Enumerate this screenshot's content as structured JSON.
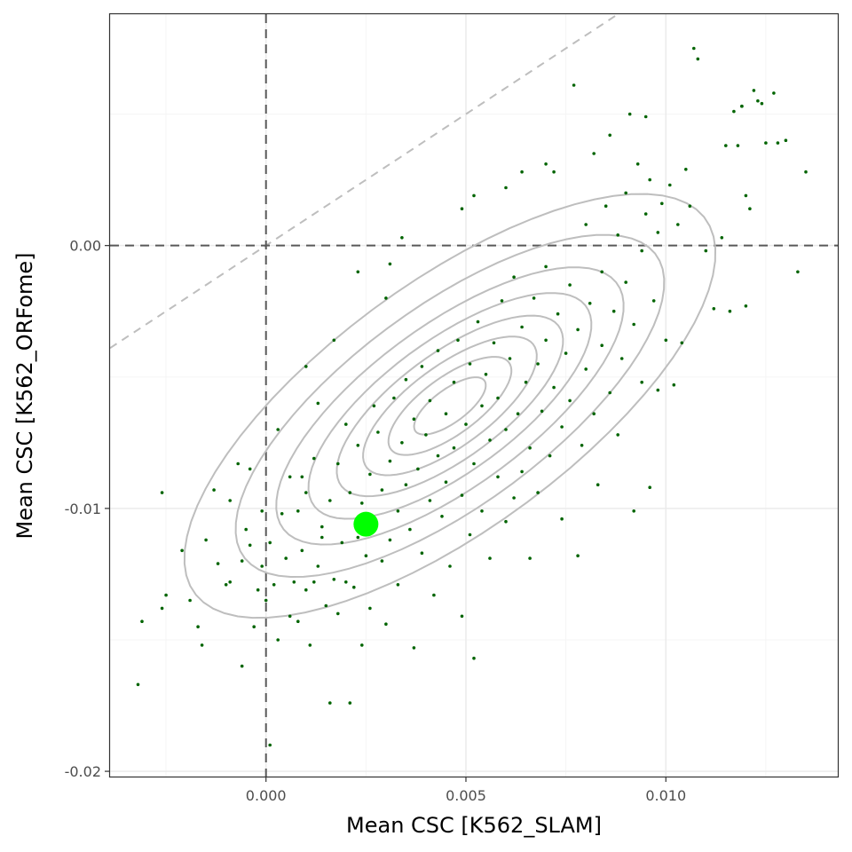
{
  "chart_data": {
    "type": "scatter",
    "xlabel": "Mean CSC [K562_SLAM]",
    "ylabel": "Mean CSC [K562_ORFome]",
    "xlim": [
      -0.0039,
      0.0143
    ],
    "ylim": [
      -0.0202,
      0.0088
    ],
    "x_ticks": [
      0.0,
      0.005,
      0.01
    ],
    "x_tick_labels": [
      "0.000",
      "0.005",
      "0.010"
    ],
    "y_ticks": [
      0.0,
      -0.01,
      -0.02
    ],
    "y_tick_labels": [
      "0.00",
      "-0.01",
      "-0.02"
    ],
    "grid": true,
    "legend": "none",
    "reference_lines": {
      "vertical_dashed_x": 0,
      "horizontal_dashed_y": 0,
      "diagonal_identity": true
    },
    "colors": {
      "points": "#006400",
      "highlight": "#00ff00",
      "contour": "#bebebe",
      "zero_lines": "#595959",
      "identity_line": "#bebebe",
      "grid_major": "#ebebeb",
      "grid_minor": "#f5f5f5",
      "panel_border": "#333333"
    },
    "contour": {
      "center": [
        0.0046,
        -0.0061
      ],
      "sd": [
        0.0028,
        0.0034
      ],
      "correlation": 0.72,
      "levels": [
        0.06,
        0.16,
        0.3,
        0.45,
        0.6,
        0.74,
        0.86,
        0.95
      ]
    },
    "highlight_point": {
      "x": 0.0025,
      "y": -0.0106
    },
    "points": [
      [
        -0.0032,
        -0.0167
      ],
      [
        -0.0031,
        -0.0143
      ],
      [
        -0.0026,
        -0.0094
      ],
      [
        -0.0025,
        -0.0133
      ],
      [
        -0.0026,
        -0.0138
      ],
      [
        -0.0021,
        -0.0116
      ],
      [
        -0.0019,
        -0.0135
      ],
      [
        -0.0017,
        -0.0145
      ],
      [
        -0.0016,
        -0.0152
      ],
      [
        -0.0015,
        -0.0112
      ],
      [
        -0.0013,
        -0.0093
      ],
      [
        -0.0012,
        -0.0121
      ],
      [
        -0.001,
        -0.0129
      ],
      [
        -0.0009,
        -0.0128
      ],
      [
        -0.0009,
        -0.0097
      ],
      [
        -0.0007,
        -0.0083
      ],
      [
        -0.0006,
        -0.012
      ],
      [
        -0.0006,
        -0.016
      ],
      [
        -0.0005,
        -0.0108
      ],
      [
        -0.0004,
        -0.0114
      ],
      [
        -0.0003,
        -0.0145
      ],
      [
        -0.0002,
        -0.0131
      ],
      [
        -0.0001,
        -0.0101
      ],
      [
        -0.0001,
        -0.0122
      ],
      [
        0.0,
        -0.0135
      ],
      [
        0.0001,
        -0.0113
      ],
      [
        0.0001,
        -0.019
      ],
      [
        0.0002,
        -0.0129
      ],
      [
        0.0003,
        -0.015
      ],
      [
        0.0004,
        -0.0102
      ],
      [
        0.0005,
        -0.0119
      ],
      [
        0.0006,
        -0.0088
      ],
      [
        0.0006,
        -0.0141
      ],
      [
        0.0007,
        -0.0128
      ],
      [
        0.0008,
        -0.0101
      ],
      [
        0.0008,
        -0.0143
      ],
      [
        0.0009,
        -0.0116
      ],
      [
        0.001,
        -0.0131
      ],
      [
        0.001,
        -0.0094
      ],
      [
        0.0011,
        -0.0152
      ],
      [
        0.0012,
        -0.0128
      ],
      [
        0.0012,
        -0.0081
      ],
      [
        0.0013,
        -0.0122
      ],
      [
        0.0014,
        -0.0111
      ],
      [
        0.0014,
        -0.0107
      ],
      [
        0.0015,
        -0.0137
      ],
      [
        0.0016,
        -0.0174
      ],
      [
        0.0016,
        -0.0097
      ],
      [
        0.0017,
        -0.0127
      ],
      [
        0.0018,
        -0.014
      ],
      [
        0.0018,
        -0.0083
      ],
      [
        0.0019,
        -0.0113
      ],
      [
        0.002,
        -0.0068
      ],
      [
        0.002,
        -0.0128
      ],
      [
        0.0021,
        -0.0174
      ],
      [
        0.0021,
        -0.0094
      ],
      [
        0.0022,
        -0.013
      ],
      [
        0.0023,
        -0.0111
      ],
      [
        0.0023,
        -0.0076
      ],
      [
        0.0024,
        -0.0152
      ],
      [
        0.0024,
        -0.0098
      ],
      [
        0.0025,
        -0.0118
      ],
      [
        0.0026,
        -0.0087
      ],
      [
        0.0026,
        -0.0138
      ],
      [
        0.0027,
        -0.0061
      ],
      [
        0.0027,
        -0.0104
      ],
      [
        0.0028,
        -0.0071
      ],
      [
        0.0029,
        -0.012
      ],
      [
        0.0029,
        -0.0093
      ],
      [
        0.003,
        -0.0144
      ],
      [
        0.0031,
        -0.0082
      ],
      [
        0.0031,
        -0.0112
      ],
      [
        0.0032,
        -0.0058
      ],
      [
        0.0033,
        -0.0101
      ],
      [
        0.0033,
        -0.0129
      ],
      [
        0.0034,
        -0.0075
      ],
      [
        0.0035,
        -0.0091
      ],
      [
        0.0035,
        -0.0051
      ],
      [
        0.0036,
        -0.0108
      ],
      [
        0.0037,
        -0.0066
      ],
      [
        0.0037,
        -0.0153
      ],
      [
        0.0038,
        -0.0085
      ],
      [
        0.0039,
        -0.0046
      ],
      [
        0.0039,
        -0.0117
      ],
      [
        0.004,
        -0.0072
      ],
      [
        0.0041,
        -0.0097
      ],
      [
        0.0041,
        -0.0059
      ],
      [
        0.0042,
        -0.0133
      ],
      [
        0.0043,
        -0.008
      ],
      [
        0.0043,
        -0.004
      ],
      [
        0.0044,
        -0.0103
      ],
      [
        0.0045,
        -0.0064
      ],
      [
        0.0045,
        -0.009
      ],
      [
        0.0046,
        -0.0122
      ],
      [
        0.0047,
        -0.0052
      ],
      [
        0.0047,
        -0.0077
      ],
      [
        0.0048,
        -0.0036
      ],
      [
        0.0049,
        -0.0095
      ],
      [
        0.0049,
        -0.0141
      ],
      [
        0.005,
        -0.0068
      ],
      [
        0.0051,
        -0.011
      ],
      [
        0.0051,
        -0.0045
      ],
      [
        0.0052,
        -0.0157
      ],
      [
        0.0052,
        -0.0083
      ],
      [
        0.0053,
        -0.0029
      ],
      [
        0.0054,
        -0.0061
      ],
      [
        0.0054,
        -0.0101
      ],
      [
        0.0055,
        -0.0049
      ],
      [
        0.0056,
        -0.0074
      ],
      [
        0.0056,
        -0.0119
      ],
      [
        0.0057,
        -0.0037
      ],
      [
        0.0058,
        -0.0088
      ],
      [
        0.0058,
        -0.0058
      ],
      [
        0.0059,
        -0.0021
      ],
      [
        0.006,
        -0.0105
      ],
      [
        0.006,
        -0.007
      ],
      [
        0.0061,
        -0.0043
      ],
      [
        0.0062,
        -0.0096
      ],
      [
        0.0062,
        -0.0012
      ],
      [
        0.0063,
        -0.0064
      ],
      [
        0.0064,
        -0.0086
      ],
      [
        0.0064,
        -0.0031
      ],
      [
        0.0065,
        -0.0052
      ],
      [
        0.0066,
        -0.0119
      ],
      [
        0.0066,
        -0.0077
      ],
      [
        0.0067,
        -0.002
      ],
      [
        0.0068,
        -0.0045
      ],
      [
        0.0068,
        -0.0094
      ],
      [
        0.0069,
        -0.0063
      ],
      [
        0.007,
        -0.0008
      ],
      [
        0.007,
        -0.0036
      ],
      [
        0.0071,
        -0.008
      ],
      [
        0.0072,
        -0.0054
      ],
      [
        0.0072,
        0.0028
      ],
      [
        0.0073,
        -0.0026
      ],
      [
        0.0074,
        -0.0069
      ],
      [
        0.0074,
        -0.0104
      ],
      [
        0.0075,
        -0.0041
      ],
      [
        0.0076,
        -0.0015
      ],
      [
        0.0076,
        -0.0059
      ],
      [
        0.0077,
        0.0061
      ],
      [
        0.0078,
        -0.0032
      ],
      [
        0.0078,
        -0.0118
      ],
      [
        0.0079,
        -0.0076
      ],
      [
        0.008,
        0.0008
      ],
      [
        0.008,
        -0.0047
      ],
      [
        0.0081,
        -0.0022
      ],
      [
        0.0082,
        -0.0064
      ],
      [
        0.0082,
        0.0035
      ],
      [
        0.0083,
        -0.0091
      ],
      [
        0.0084,
        -0.001
      ],
      [
        0.0084,
        -0.0038
      ],
      [
        0.0085,
        0.0015
      ],
      [
        0.0086,
        -0.0056
      ],
      [
        0.0086,
        0.0042
      ],
      [
        0.0087,
        -0.0025
      ],
      [
        0.0088,
        -0.0072
      ],
      [
        0.0088,
        0.0004
      ],
      [
        0.0089,
        -0.0043
      ],
      [
        0.009,
        0.002
      ],
      [
        0.009,
        -0.0014
      ],
      [
        0.0091,
        0.005
      ],
      [
        0.0092,
        -0.003
      ],
      [
        0.0092,
        -0.0101
      ],
      [
        0.0093,
        0.0031
      ],
      [
        0.0094,
        -0.0002
      ],
      [
        0.0094,
        -0.0052
      ],
      [
        0.0095,
        0.0012
      ],
      [
        0.0096,
        -0.0092
      ],
      [
        0.0096,
        0.0025
      ],
      [
        0.0097,
        -0.0021
      ],
      [
        0.0098,
        -0.0055
      ],
      [
        0.0098,
        0.0005
      ],
      [
        0.0099,
        0.0016
      ],
      [
        0.01,
        -0.0036
      ],
      [
        0.0101,
        0.0023
      ],
      [
        0.0102,
        -0.0053
      ],
      [
        0.0103,
        0.0008
      ],
      [
        0.0104,
        -0.0037
      ],
      [
        0.0105,
        0.0029
      ],
      [
        0.0106,
        0.0015
      ],
      [
        0.0107,
        0.0075
      ],
      [
        0.0108,
        0.0071
      ],
      [
        0.011,
        -0.0002
      ],
      [
        0.0112,
        -0.0024
      ],
      [
        0.0114,
        0.0003
      ],
      [
        0.0115,
        0.0038
      ],
      [
        0.0116,
        -0.0025
      ],
      [
        0.0117,
        0.0051
      ],
      [
        0.0118,
        0.0038
      ],
      [
        0.0119,
        0.0053
      ],
      [
        0.012,
        -0.0023
      ],
      [
        0.012,
        0.0019
      ],
      [
        0.0121,
        0.0014
      ],
      [
        0.0122,
        0.0059
      ],
      [
        0.0123,
        0.0055
      ],
      [
        0.0124,
        0.0054
      ],
      [
        0.0125,
        0.0039
      ],
      [
        0.0127,
        0.0058
      ],
      [
        0.0128,
        0.0039
      ],
      [
        0.013,
        0.004
      ],
      [
        0.0133,
        -0.001
      ],
      [
        0.0135,
        0.0028
      ],
      [
        0.0119,
        0.0053
      ],
      [
        0.0095,
        0.0049
      ],
      [
        0.007,
        0.0031
      ],
      [
        0.0064,
        0.0028
      ],
      [
        0.006,
        0.0022
      ],
      [
        0.0052,
        0.0019
      ],
      [
        0.0049,
        0.0014
      ],
      [
        0.0034,
        0.0003
      ],
      [
        0.0031,
        -0.0007
      ],
      [
        0.003,
        -0.002
      ],
      [
        0.0023,
        -0.001
      ],
      [
        0.001,
        -0.0046
      ],
      [
        0.0017,
        -0.0036
      ],
      [
        0.0003,
        -0.007
      ],
      [
        -0.0004,
        -0.0085
      ],
      [
        0.0009,
        -0.0088
      ],
      [
        0.0013,
        -0.006
      ]
    ]
  }
}
